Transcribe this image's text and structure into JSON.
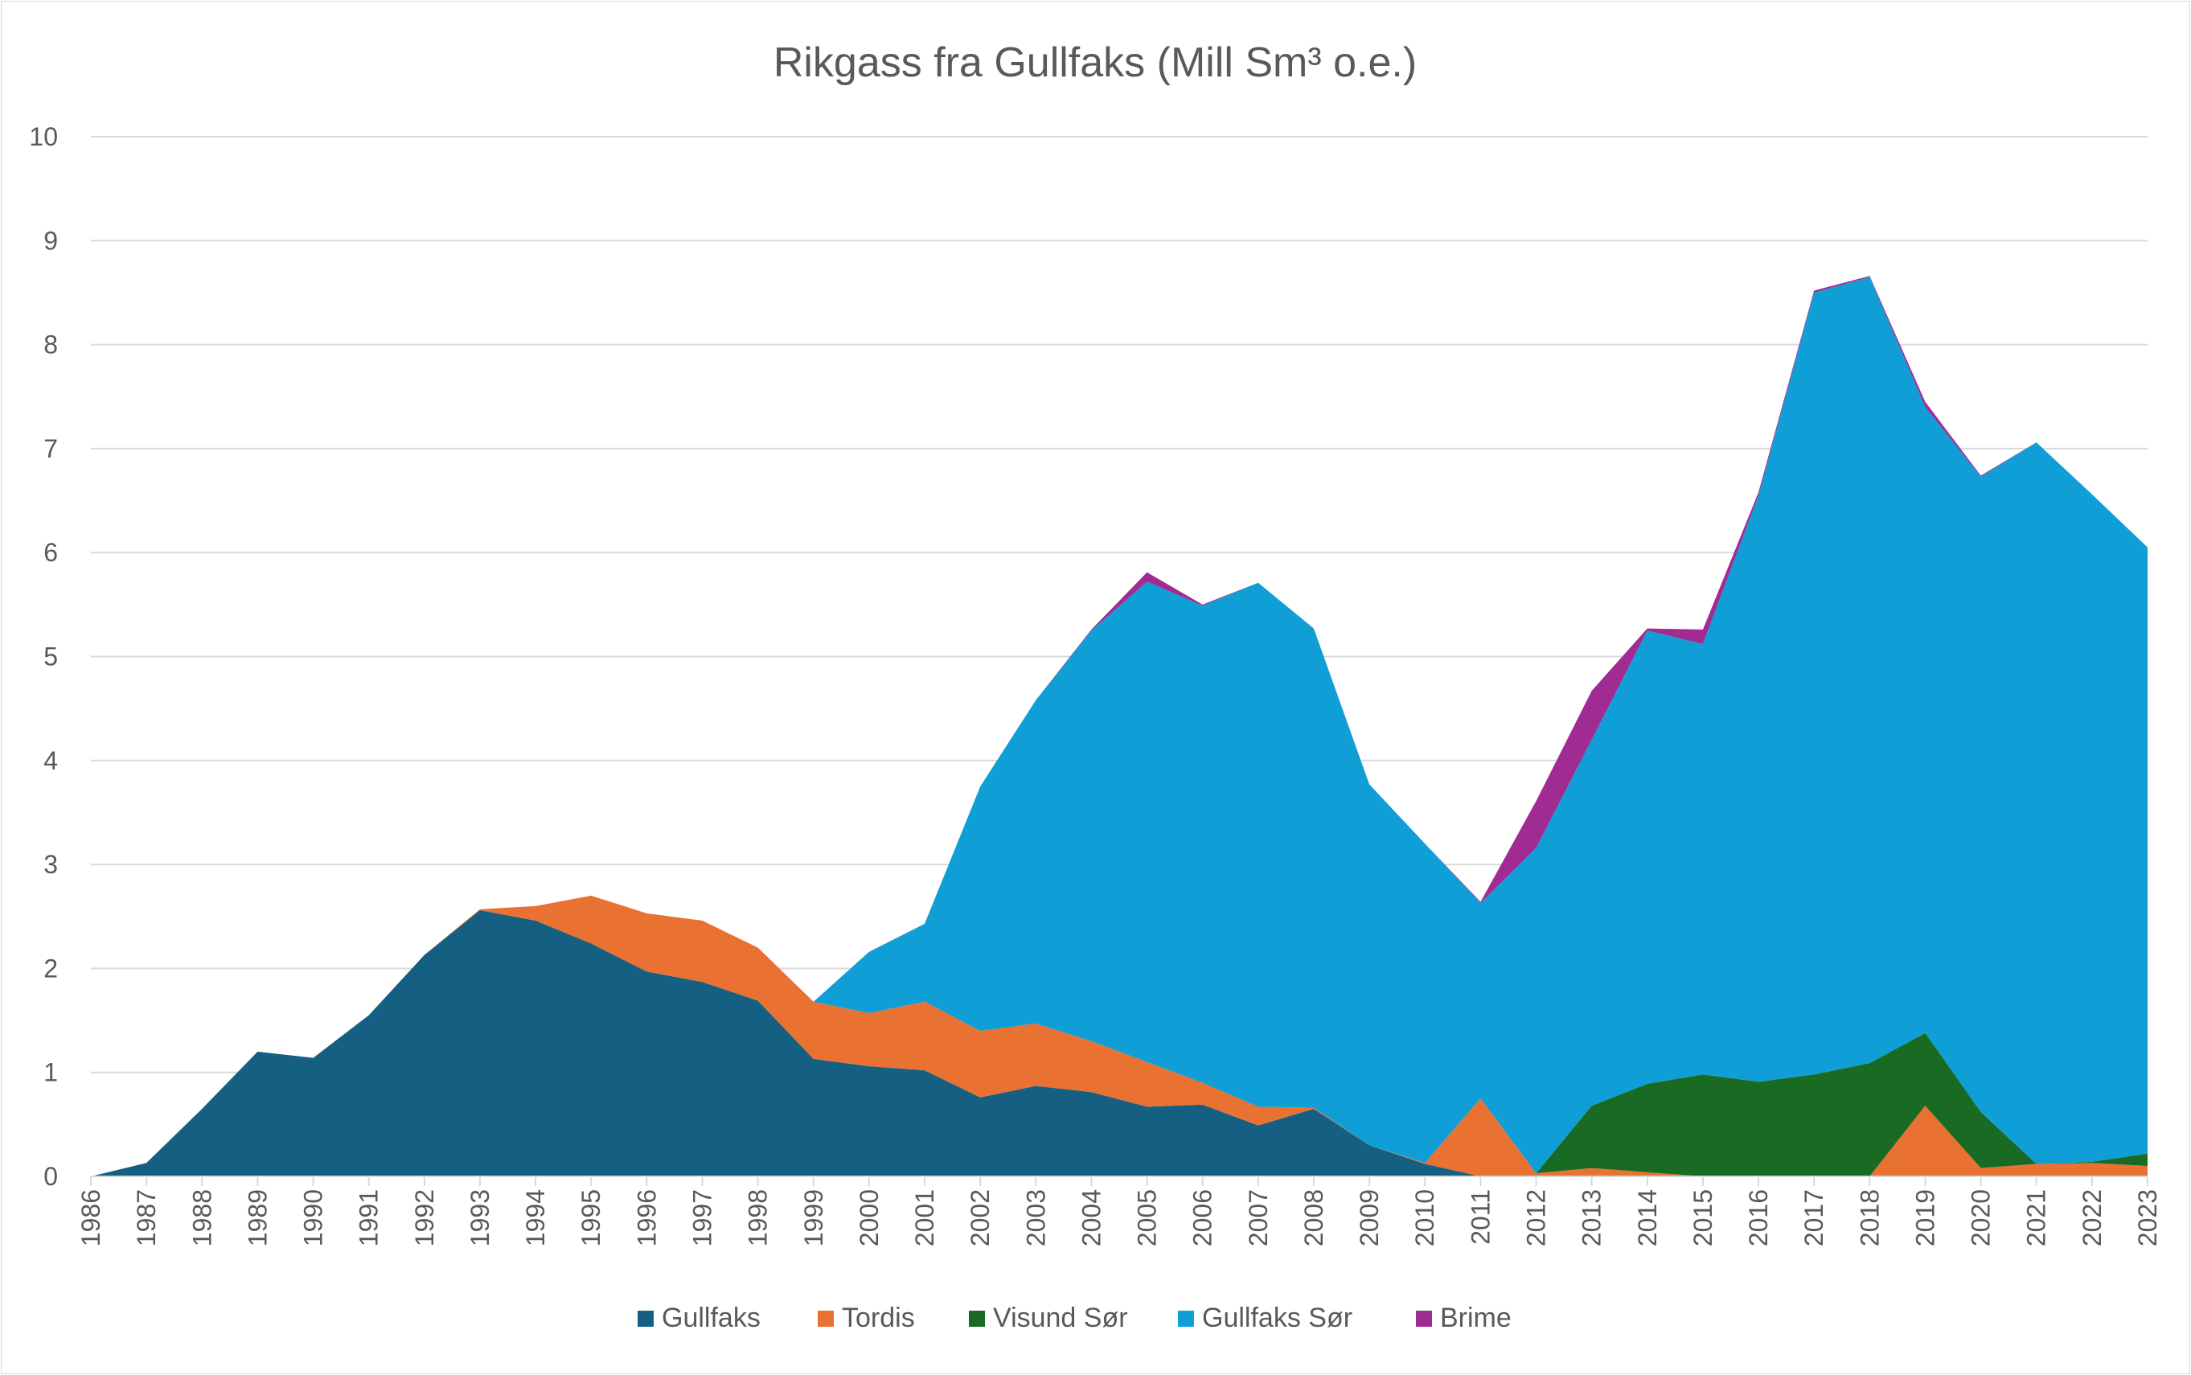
{
  "chart_data": {
    "type": "area",
    "stacked": true,
    "title": "Rikgass fra Gullfaks (Mill Sm³ o.e.)",
    "xlabel": "",
    "ylabel": "",
    "ylim": [
      0,
      10
    ],
    "yticks": [
      0,
      1,
      2,
      3,
      4,
      5,
      6,
      7,
      8,
      9,
      10
    ],
    "grid": true,
    "legend_position": "bottom",
    "categories": [
      1986,
      1987,
      1988,
      1989,
      1990,
      1991,
      1992,
      1993,
      1994,
      1995,
      1996,
      1997,
      1998,
      1999,
      2000,
      2001,
      2002,
      2003,
      2004,
      2005,
      2006,
      2007,
      2008,
      2009,
      2010,
      2011,
      2012,
      2013,
      2014,
      2015,
      2016,
      2017,
      2018,
      2019,
      2020,
      2021,
      2022,
      2023
    ],
    "series": [
      {
        "name": "Gullfaks",
        "color": "#156082",
        "values": [
          0,
          0.13,
          0.65,
          1.2,
          1.14,
          1.55,
          2.13,
          2.56,
          2.46,
          2.24,
          1.97,
          1.87,
          1.69,
          1.13,
          1.06,
          1.02,
          0.76,
          0.87,
          0.81,
          0.67,
          0.69,
          0.49,
          0.65,
          0.3,
          0.12,
          0,
          0,
          0,
          0,
          0,
          0,
          0,
          0,
          0,
          0,
          0,
          0,
          0
        ]
      },
      {
        "name": "Tordis",
        "color": "#E97132",
        "values": [
          0,
          0,
          0,
          0,
          0,
          0,
          0,
          0.01,
          0.14,
          0.46,
          0.56,
          0.59,
          0.51,
          0.55,
          0.51,
          0.66,
          0.64,
          0.6,
          0.49,
          0.43,
          0.21,
          0.18,
          0.01,
          0,
          0.01,
          0.75,
          0.03,
          0.08,
          0.04,
          0,
          0,
          0,
          0,
          0.68,
          0.08,
          0.12,
          0.13,
          0.1
        ]
      },
      {
        "name": "Visund Sør",
        "color": "#196B24",
        "values": [
          0,
          0,
          0,
          0,
          0,
          0,
          0,
          0,
          0,
          0,
          0,
          0,
          0,
          0,
          0,
          0,
          0,
          0,
          0,
          0,
          0,
          0,
          0,
          0,
          0,
          0,
          0,
          0.6,
          0.85,
          0.98,
          0.91,
          0.98,
          1.09,
          0.7,
          0.54,
          0,
          0.01,
          0.12
        ]
      },
      {
        "name": "Gullfaks Sør",
        "color": "#0F9ED5",
        "values": [
          0,
          0,
          0,
          0,
          0,
          0,
          0,
          0,
          0,
          0,
          0,
          0,
          0,
          0,
          0.59,
          0.75,
          2.35,
          3.11,
          3.95,
          4.62,
          4.59,
          5.04,
          4.61,
          3.47,
          3.07,
          1.88,
          3.13,
          3.52,
          4.36,
          4.14,
          5.64,
          7.52,
          7.56,
          6.02,
          6.11,
          6.94,
          6.42,
          5.83
        ]
      },
      {
        "name": "Brime",
        "color": "#A02B93",
        "values": [
          0,
          0,
          0,
          0,
          0,
          0,
          0,
          0,
          0,
          0,
          0,
          0,
          0,
          0,
          0,
          0,
          0,
          0,
          0.01,
          0.09,
          0.01,
          0,
          0,
          0,
          0,
          0.01,
          0.45,
          0.47,
          0.02,
          0.14,
          0.03,
          0.02,
          0.01,
          0.05,
          0.01,
          0,
          0,
          0
        ]
      }
    ]
  }
}
